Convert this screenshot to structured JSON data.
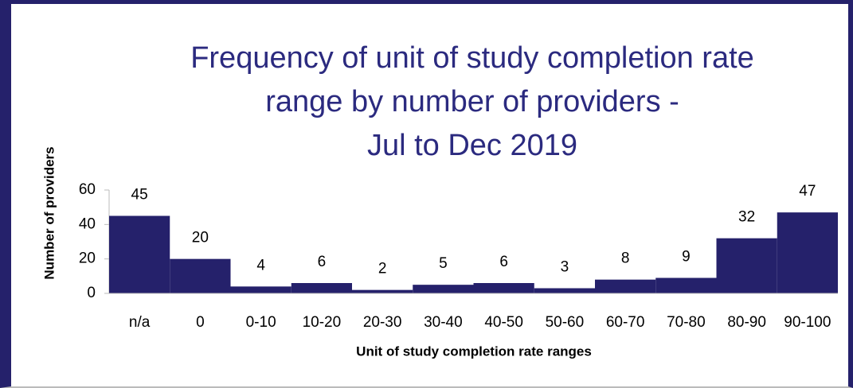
{
  "chart_data": {
    "type": "bar",
    "title": [
      "Frequency of unit of study completion rate",
      "range by number of providers -",
      "Jul to Dec 2019"
    ],
    "x_label": "Unit of study completion rate ranges",
    "y_label": "Number of providers",
    "categories": [
      "n/a",
      "0",
      "0-10",
      "10-20",
      "20-30",
      "30-40",
      "40-50",
      "50-60",
      "60-70",
      "70-80",
      "80-90",
      "90-100"
    ],
    "values": [
      45,
      20,
      4,
      6,
      2,
      5,
      6,
      3,
      8,
      9,
      32,
      47
    ],
    "color": "#25216b",
    "ylim": [
      0,
      60
    ],
    "yticks": [
      0,
      20,
      40,
      60
    ],
    "grid": false
  }
}
